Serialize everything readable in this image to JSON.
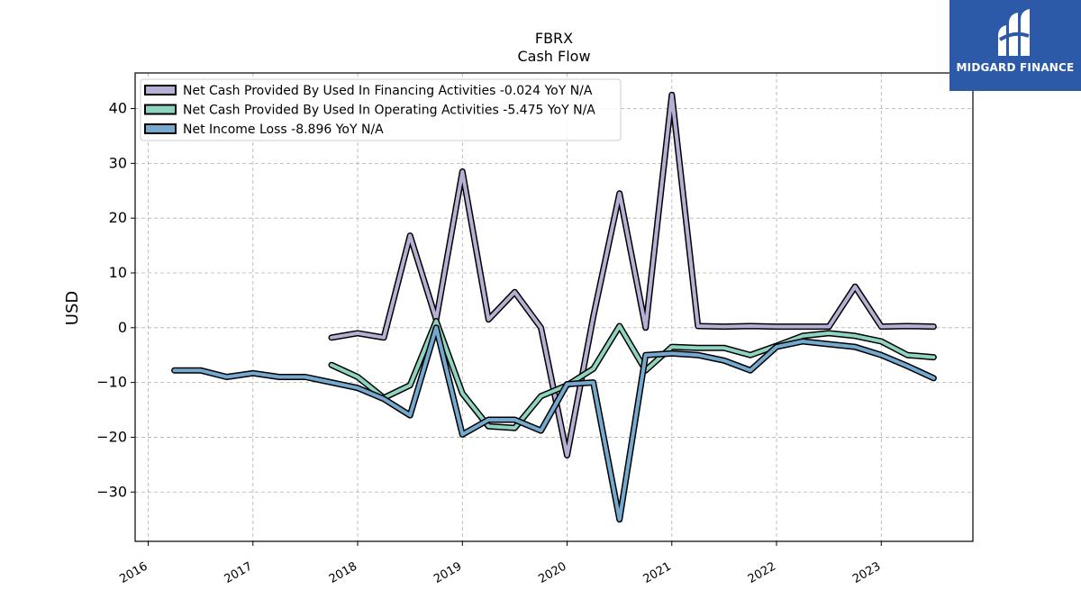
{
  "chart_data": {
    "type": "line",
    "title": "FBRX",
    "subtitle": "Cash Flow",
    "xlabel": "",
    "ylabel": "USD",
    "xlim": [
      2015.875,
      2023.875
    ],
    "ylim": [
      -39,
      46.5
    ],
    "yticks": [
      -30,
      -20,
      -10,
      0,
      10,
      20,
      30,
      40
    ],
    "ytick_labels": [
      "−30",
      "−20",
      "−10",
      "0",
      "10",
      "20",
      "30",
      "40"
    ],
    "xticks": [
      2016,
      2017,
      2018,
      2019,
      2020,
      2021,
      2022,
      2023
    ],
    "xtick_labels": [
      "2016",
      "2017",
      "2018",
      "2019",
      "2020",
      "2021",
      "2022",
      "2023"
    ],
    "grid": true,
    "legend_position": "top-left",
    "series": [
      {
        "name": "Net Cash Provided By Used In Financing Activities  -0.024 YoY N/A",
        "color": "#b7b0d4",
        "points": [
          [
            2017.75,
            -1.8
          ],
          [
            2018.0,
            -1.0
          ],
          [
            2018.25,
            -1.8
          ],
          [
            2018.5,
            16.8
          ],
          [
            2018.75,
            1.5
          ],
          [
            2019.0,
            28.5
          ],
          [
            2019.25,
            1.5
          ],
          [
            2019.5,
            6.5
          ],
          [
            2019.75,
            0.0
          ],
          [
            2020.0,
            -23.3
          ],
          [
            2020.25,
            2.0
          ],
          [
            2020.5,
            24.5
          ],
          [
            2020.75,
            0.0
          ],
          [
            2021.0,
            42.5
          ],
          [
            2021.25,
            0.3
          ],
          [
            2021.5,
            0.2
          ],
          [
            2021.75,
            0.3
          ],
          [
            2022.0,
            0.2
          ],
          [
            2022.25,
            0.2
          ],
          [
            2022.5,
            0.2
          ],
          [
            2022.75,
            7.5
          ],
          [
            2023.0,
            0.2
          ],
          [
            2023.25,
            0.3
          ],
          [
            2023.5,
            0.2
          ]
        ]
      },
      {
        "name": "Net Cash Provided By Used In Operating Activities  -5.475 YoY N/A",
        "color": "#8fd4c1",
        "points": [
          [
            2017.75,
            -6.8
          ],
          [
            2018.0,
            -9.0
          ],
          [
            2018.25,
            -12.8
          ],
          [
            2018.5,
            -10.5
          ],
          [
            2018.75,
            1.2
          ],
          [
            2019.0,
            -12.0
          ],
          [
            2019.25,
            -18.0
          ],
          [
            2019.5,
            -18.3
          ],
          [
            2019.75,
            -12.5
          ],
          [
            2020.0,
            -10.5
          ],
          [
            2020.25,
            -7.5
          ],
          [
            2020.5,
            0.3
          ],
          [
            2020.75,
            -7.8
          ],
          [
            2021.0,
            -3.5
          ],
          [
            2021.25,
            -3.7
          ],
          [
            2021.5,
            -3.7
          ],
          [
            2021.75,
            -5.0
          ],
          [
            2022.0,
            -3.3
          ],
          [
            2022.25,
            -1.5
          ],
          [
            2022.5,
            -1.0
          ],
          [
            2022.75,
            -1.5
          ],
          [
            2023.0,
            -2.5
          ],
          [
            2023.25,
            -5.0
          ],
          [
            2023.5,
            -5.4
          ]
        ]
      },
      {
        "name": "Net Income Loss  -8.896 YoY N/A",
        "color": "#75a9cf",
        "points": [
          [
            2016.25,
            -7.8
          ],
          [
            2016.5,
            -7.8
          ],
          [
            2016.75,
            -9.0
          ],
          [
            2017.0,
            -8.3
          ],
          [
            2017.25,
            -9.0
          ],
          [
            2017.5,
            -9.0
          ],
          [
            2017.75,
            -10.0
          ],
          [
            2018.0,
            -11.0
          ],
          [
            2018.25,
            -13.0
          ],
          [
            2018.5,
            -16.0
          ],
          [
            2018.75,
            0.0
          ],
          [
            2019.0,
            -19.5
          ],
          [
            2019.25,
            -16.8
          ],
          [
            2019.5,
            -16.8
          ],
          [
            2019.75,
            -18.8
          ],
          [
            2020.0,
            -10.3
          ],
          [
            2020.25,
            -10.0
          ],
          [
            2020.5,
            -35.0
          ],
          [
            2020.75,
            -5.0
          ],
          [
            2021.0,
            -4.7
          ],
          [
            2021.25,
            -5.0
          ],
          [
            2021.5,
            -6.0
          ],
          [
            2021.75,
            -7.8
          ],
          [
            2022.0,
            -3.5
          ],
          [
            2022.25,
            -2.5
          ],
          [
            2022.5,
            -3.0
          ],
          [
            2022.75,
            -3.5
          ],
          [
            2023.0,
            -5.0
          ],
          [
            2023.25,
            -7.0
          ],
          [
            2023.5,
            -9.2
          ]
        ]
      }
    ]
  },
  "logo": {
    "text": "MIDGARD FINANCE",
    "color": "#2d5aa8"
  }
}
